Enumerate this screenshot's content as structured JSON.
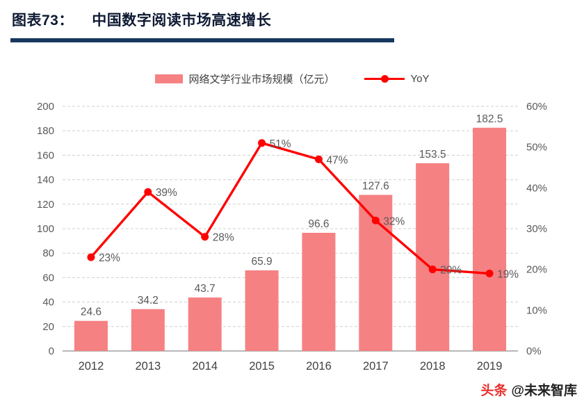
{
  "header": {
    "title_prefix": "图表73：",
    "title": "中国数字阅读市场高速增长"
  },
  "legend": {
    "bars": "网络文学行业市场规模（亿元）",
    "line": "YoY"
  },
  "chart_data": {
    "type": "bar",
    "title": "中国数字阅读市场高速增长",
    "categories": [
      "2012",
      "2013",
      "2014",
      "2015",
      "2016",
      "2017",
      "2018",
      "2019"
    ],
    "series": [
      {
        "name": "网络文学行业市场规模（亿元）",
        "type": "bar",
        "axis": "left",
        "values": [
          24.6,
          34.2,
          43.7,
          65.9,
          96.6,
          127.6,
          153.5,
          182.5
        ],
        "labels": [
          "24.6",
          "34.2",
          "43.7",
          "65.9",
          "96.6",
          "127.6",
          "153.5",
          "182.5"
        ]
      },
      {
        "name": "YoY",
        "type": "line",
        "axis": "right",
        "values": [
          23,
          39,
          28,
          51,
          47,
          32,
          20,
          19
        ],
        "labels": [
          "23%",
          "39%",
          "28%",
          "51%",
          "47%",
          "32%",
          "20%",
          "19%"
        ]
      }
    ],
    "left_axis": {
      "min": 0,
      "max": 200,
      "ticks": [
        "0",
        "20",
        "40",
        "60",
        "80",
        "100",
        "120",
        "140",
        "160",
        "180",
        "200"
      ]
    },
    "right_axis": {
      "min": 0,
      "max": 60,
      "ticks": [
        "0%",
        "10%",
        "20%",
        "30%",
        "40%",
        "50%",
        "60%"
      ]
    },
    "grid": true,
    "legend_position": "top",
    "colors": {
      "bar": "#f58183",
      "line": "#ff0000",
      "label": "#595959",
      "tick": "#595959",
      "category": "#404040",
      "grid": "#cfcfcf",
      "axis": "#8c8c8c"
    }
  },
  "watermark": {
    "brand": "头条",
    "handle": "@未来智库",
    "brand_color": "#e8312f",
    "handle_color": "#1f1f1f"
  }
}
